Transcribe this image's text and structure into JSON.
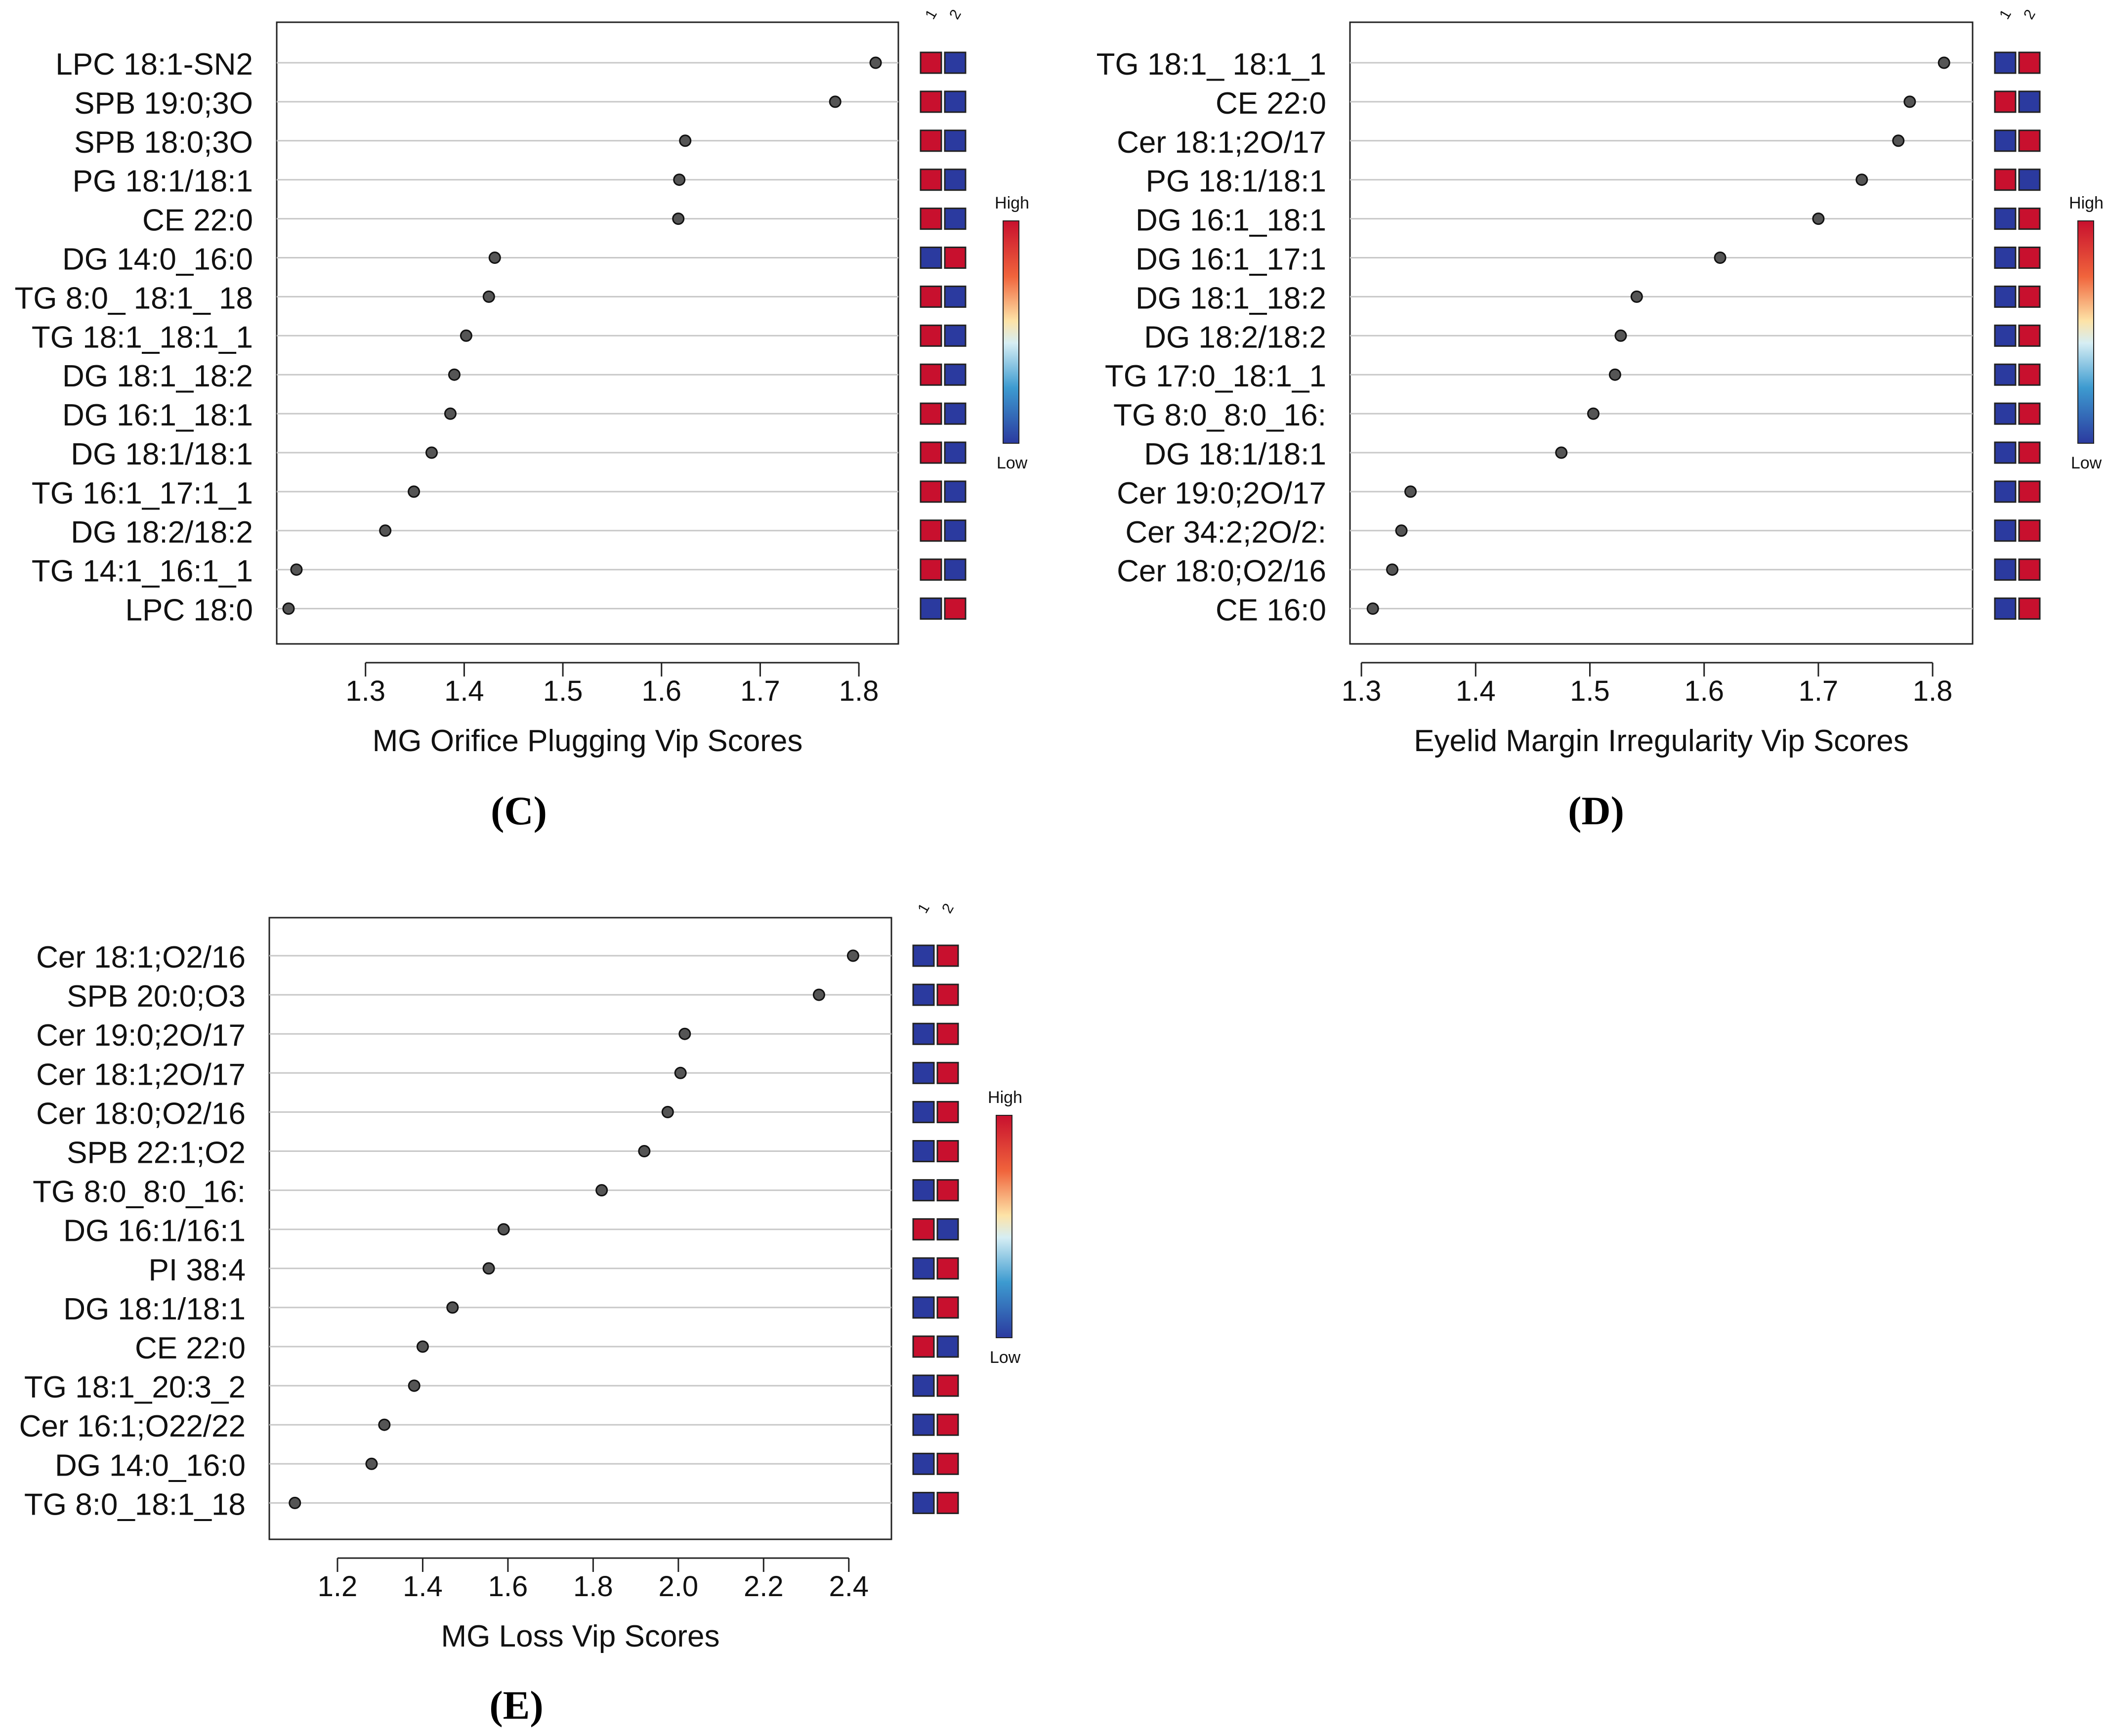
{
  "figure": {
    "labels": [
      "(C)",
      "(D)",
      "(E)"
    ]
  },
  "chart_data": [
    {
      "type": "scatter",
      "panel": "(C)",
      "xlabel": "MG Orifice Plugging Vip Scores",
      "ylabel": "",
      "xlim": [
        1.21,
        1.84
      ],
      "xticks": [
        1.3,
        1.4,
        1.5,
        1.6,
        1.7,
        1.8
      ],
      "tick_labels": [
        "1.3",
        "1.4",
        "1.5",
        "1.6",
        "1.7",
        "1.8"
      ],
      "grid": true,
      "group_labels": [
        "1",
        "2"
      ],
      "legend": {
        "high": "High",
        "low": "Low",
        "placement": "right"
      },
      "colors": {
        "high": "#c8102e",
        "low": "#2b3a9f",
        "point": "#555555"
      },
      "points": [
        {
          "label": "LPC 18:1-SN2",
          "value": 1.817,
          "groups": [
            "high",
            "low"
          ]
        },
        {
          "label": "SPB 19:0;3O",
          "value": 1.776,
          "groups": [
            "high",
            "low"
          ]
        },
        {
          "label": "SPB 18:0;3O",
          "value": 1.624,
          "groups": [
            "high",
            "low"
          ]
        },
        {
          "label": "PG 18:1/18:1",
          "value": 1.618,
          "groups": [
            "high",
            "low"
          ]
        },
        {
          "label": "CE 22:0",
          "value": 1.617,
          "groups": [
            "high",
            "low"
          ]
        },
        {
          "label": "DG 14:0_16:0",
          "value": 1.431,
          "groups": [
            "low",
            "high"
          ]
        },
        {
          "label": "TG 8:0_ 18:1_ 18",
          "value": 1.425,
          "groups": [
            "high",
            "low"
          ]
        },
        {
          "label": "TG 18:1_18:1_1",
          "value": 1.402,
          "groups": [
            "high",
            "low"
          ]
        },
        {
          "label": "DG 18:1_18:2",
          "value": 1.39,
          "groups": [
            "high",
            "low"
          ]
        },
        {
          "label": "DG 16:1_18:1",
          "value": 1.386,
          "groups": [
            "high",
            "low"
          ]
        },
        {
          "label": "DG 18:1/18:1",
          "value": 1.367,
          "groups": [
            "high",
            "low"
          ]
        },
        {
          "label": "TG 16:1_17:1_1",
          "value": 1.349,
          "groups": [
            "high",
            "low"
          ]
        },
        {
          "label": "DG 18:2/18:2",
          "value": 1.32,
          "groups": [
            "high",
            "low"
          ]
        },
        {
          "label": "TG 14:1_16:1_1",
          "value": 1.23,
          "groups": [
            "high",
            "low"
          ]
        },
        {
          "label": "LPC 18:0",
          "value": 1.222,
          "groups": [
            "low",
            "high"
          ]
        }
      ]
    },
    {
      "type": "scatter",
      "panel": "(D)",
      "xlabel": "Eyelid Margin Irregularity Vip Scores",
      "ylabel": "",
      "xlim": [
        1.29,
        1.835
      ],
      "xticks": [
        1.3,
        1.4,
        1.5,
        1.6,
        1.7,
        1.8
      ],
      "tick_labels": [
        "1.3",
        "1.4",
        "1.5",
        "1.6",
        "1.7",
        "1.8"
      ],
      "grid": true,
      "group_labels": [
        "1",
        "2"
      ],
      "legend": {
        "high": "High",
        "low": "Low",
        "placement": "right"
      },
      "colors": {
        "high": "#c8102e",
        "low": "#2b3a9f",
        "point": "#555555"
      },
      "points": [
        {
          "label": "TG 18:1_ 18:1_1",
          "value": 1.81,
          "groups": [
            "low",
            "high"
          ]
        },
        {
          "label": "CE 22:0",
          "value": 1.78,
          "groups": [
            "high",
            "low"
          ]
        },
        {
          "label": "Cer 18:1;2O/17",
          "value": 1.77,
          "groups": [
            "low",
            "high"
          ]
        },
        {
          "label": "PG 18:1/18:1",
          "value": 1.738,
          "groups": [
            "high",
            "low"
          ]
        },
        {
          "label": "DG 16:1_18:1",
          "value": 1.7,
          "groups": [
            "low",
            "high"
          ]
        },
        {
          "label": "DG 16:1_17:1",
          "value": 1.614,
          "groups": [
            "low",
            "high"
          ]
        },
        {
          "label": "DG 18:1_18:2",
          "value": 1.541,
          "groups": [
            "low",
            "high"
          ]
        },
        {
          "label": "DG 18:2/18:2",
          "value": 1.527,
          "groups": [
            "low",
            "high"
          ]
        },
        {
          "label": "TG 17:0_18:1_1",
          "value": 1.522,
          "groups": [
            "low",
            "high"
          ]
        },
        {
          "label": "TG 8:0_8:0_16:",
          "value": 1.503,
          "groups": [
            "low",
            "high"
          ]
        },
        {
          "label": "DG 18:1/18:1",
          "value": 1.475,
          "groups": [
            "low",
            "high"
          ]
        },
        {
          "label": "Cer 19:0;2O/17",
          "value": 1.343,
          "groups": [
            "low",
            "high"
          ]
        },
        {
          "label": "Cer 34:2;2O/2:",
          "value": 1.335,
          "groups": [
            "low",
            "high"
          ]
        },
        {
          "label": "Cer 18:0;O2/16",
          "value": 1.327,
          "groups": [
            "low",
            "high"
          ]
        },
        {
          "label": "CE 16:0",
          "value": 1.31,
          "groups": [
            "low",
            "high"
          ]
        }
      ]
    },
    {
      "type": "scatter",
      "panel": "(E)",
      "xlabel": "MG Loss Vip Scores",
      "ylabel": "",
      "xlim": [
        1.04,
        2.5
      ],
      "xticks": [
        1.2,
        1.4,
        1.6,
        1.8,
        2.0,
        2.2,
        2.4
      ],
      "tick_labels": [
        "1.2",
        "1.4",
        "1.6",
        "1.8",
        "2.0",
        "2.2",
        "2.4"
      ],
      "grid": true,
      "group_labels": [
        "1",
        "2"
      ],
      "legend": {
        "high": "High",
        "low": "Low",
        "placement": "right"
      },
      "colors": {
        "high": "#c8102e",
        "low": "#2b3a9f",
        "point": "#555555"
      },
      "points": [
        {
          "label": "Cer 18:1;O2/16",
          "value": 2.41,
          "groups": [
            "low",
            "high"
          ]
        },
        {
          "label": "SPB 20:0;O3",
          "value": 2.33,
          "groups": [
            "low",
            "high"
          ]
        },
        {
          "label": "Cer 19:0;2O/17",
          "value": 2.015,
          "groups": [
            "low",
            "high"
          ]
        },
        {
          "label": "Cer 18:1;2O/17",
          "value": 2.005,
          "groups": [
            "low",
            "high"
          ]
        },
        {
          "label": "Cer 18:0;O2/16",
          "value": 1.975,
          "groups": [
            "low",
            "high"
          ]
        },
        {
          "label": "SPB 22:1;O2",
          "value": 1.92,
          "groups": [
            "low",
            "high"
          ]
        },
        {
          "label": "TG 8:0_8:0_16:",
          "value": 1.82,
          "groups": [
            "low",
            "high"
          ]
        },
        {
          "label": "DG 16:1/16:1",
          "value": 1.59,
          "groups": [
            "high",
            "low"
          ]
        },
        {
          "label": "PI 38:4",
          "value": 1.555,
          "groups": [
            "low",
            "high"
          ]
        },
        {
          "label": "DG 18:1/18:1",
          "value": 1.47,
          "groups": [
            "low",
            "high"
          ]
        },
        {
          "label": "CE 22:0",
          "value": 1.4,
          "groups": [
            "high",
            "low"
          ]
        },
        {
          "label": "TG 18:1_20:3_2",
          "value": 1.38,
          "groups": [
            "low",
            "high"
          ]
        },
        {
          "label": "Cer 16:1;O22/22",
          "value": 1.31,
          "groups": [
            "low",
            "high"
          ]
        },
        {
          "label": "DG 14:0_16:0",
          "value": 1.28,
          "groups": [
            "low",
            "high"
          ]
        },
        {
          "label": "TG 8:0_18:1_18",
          "value": 1.1,
          "groups": [
            "low",
            "high"
          ]
        }
      ]
    }
  ]
}
